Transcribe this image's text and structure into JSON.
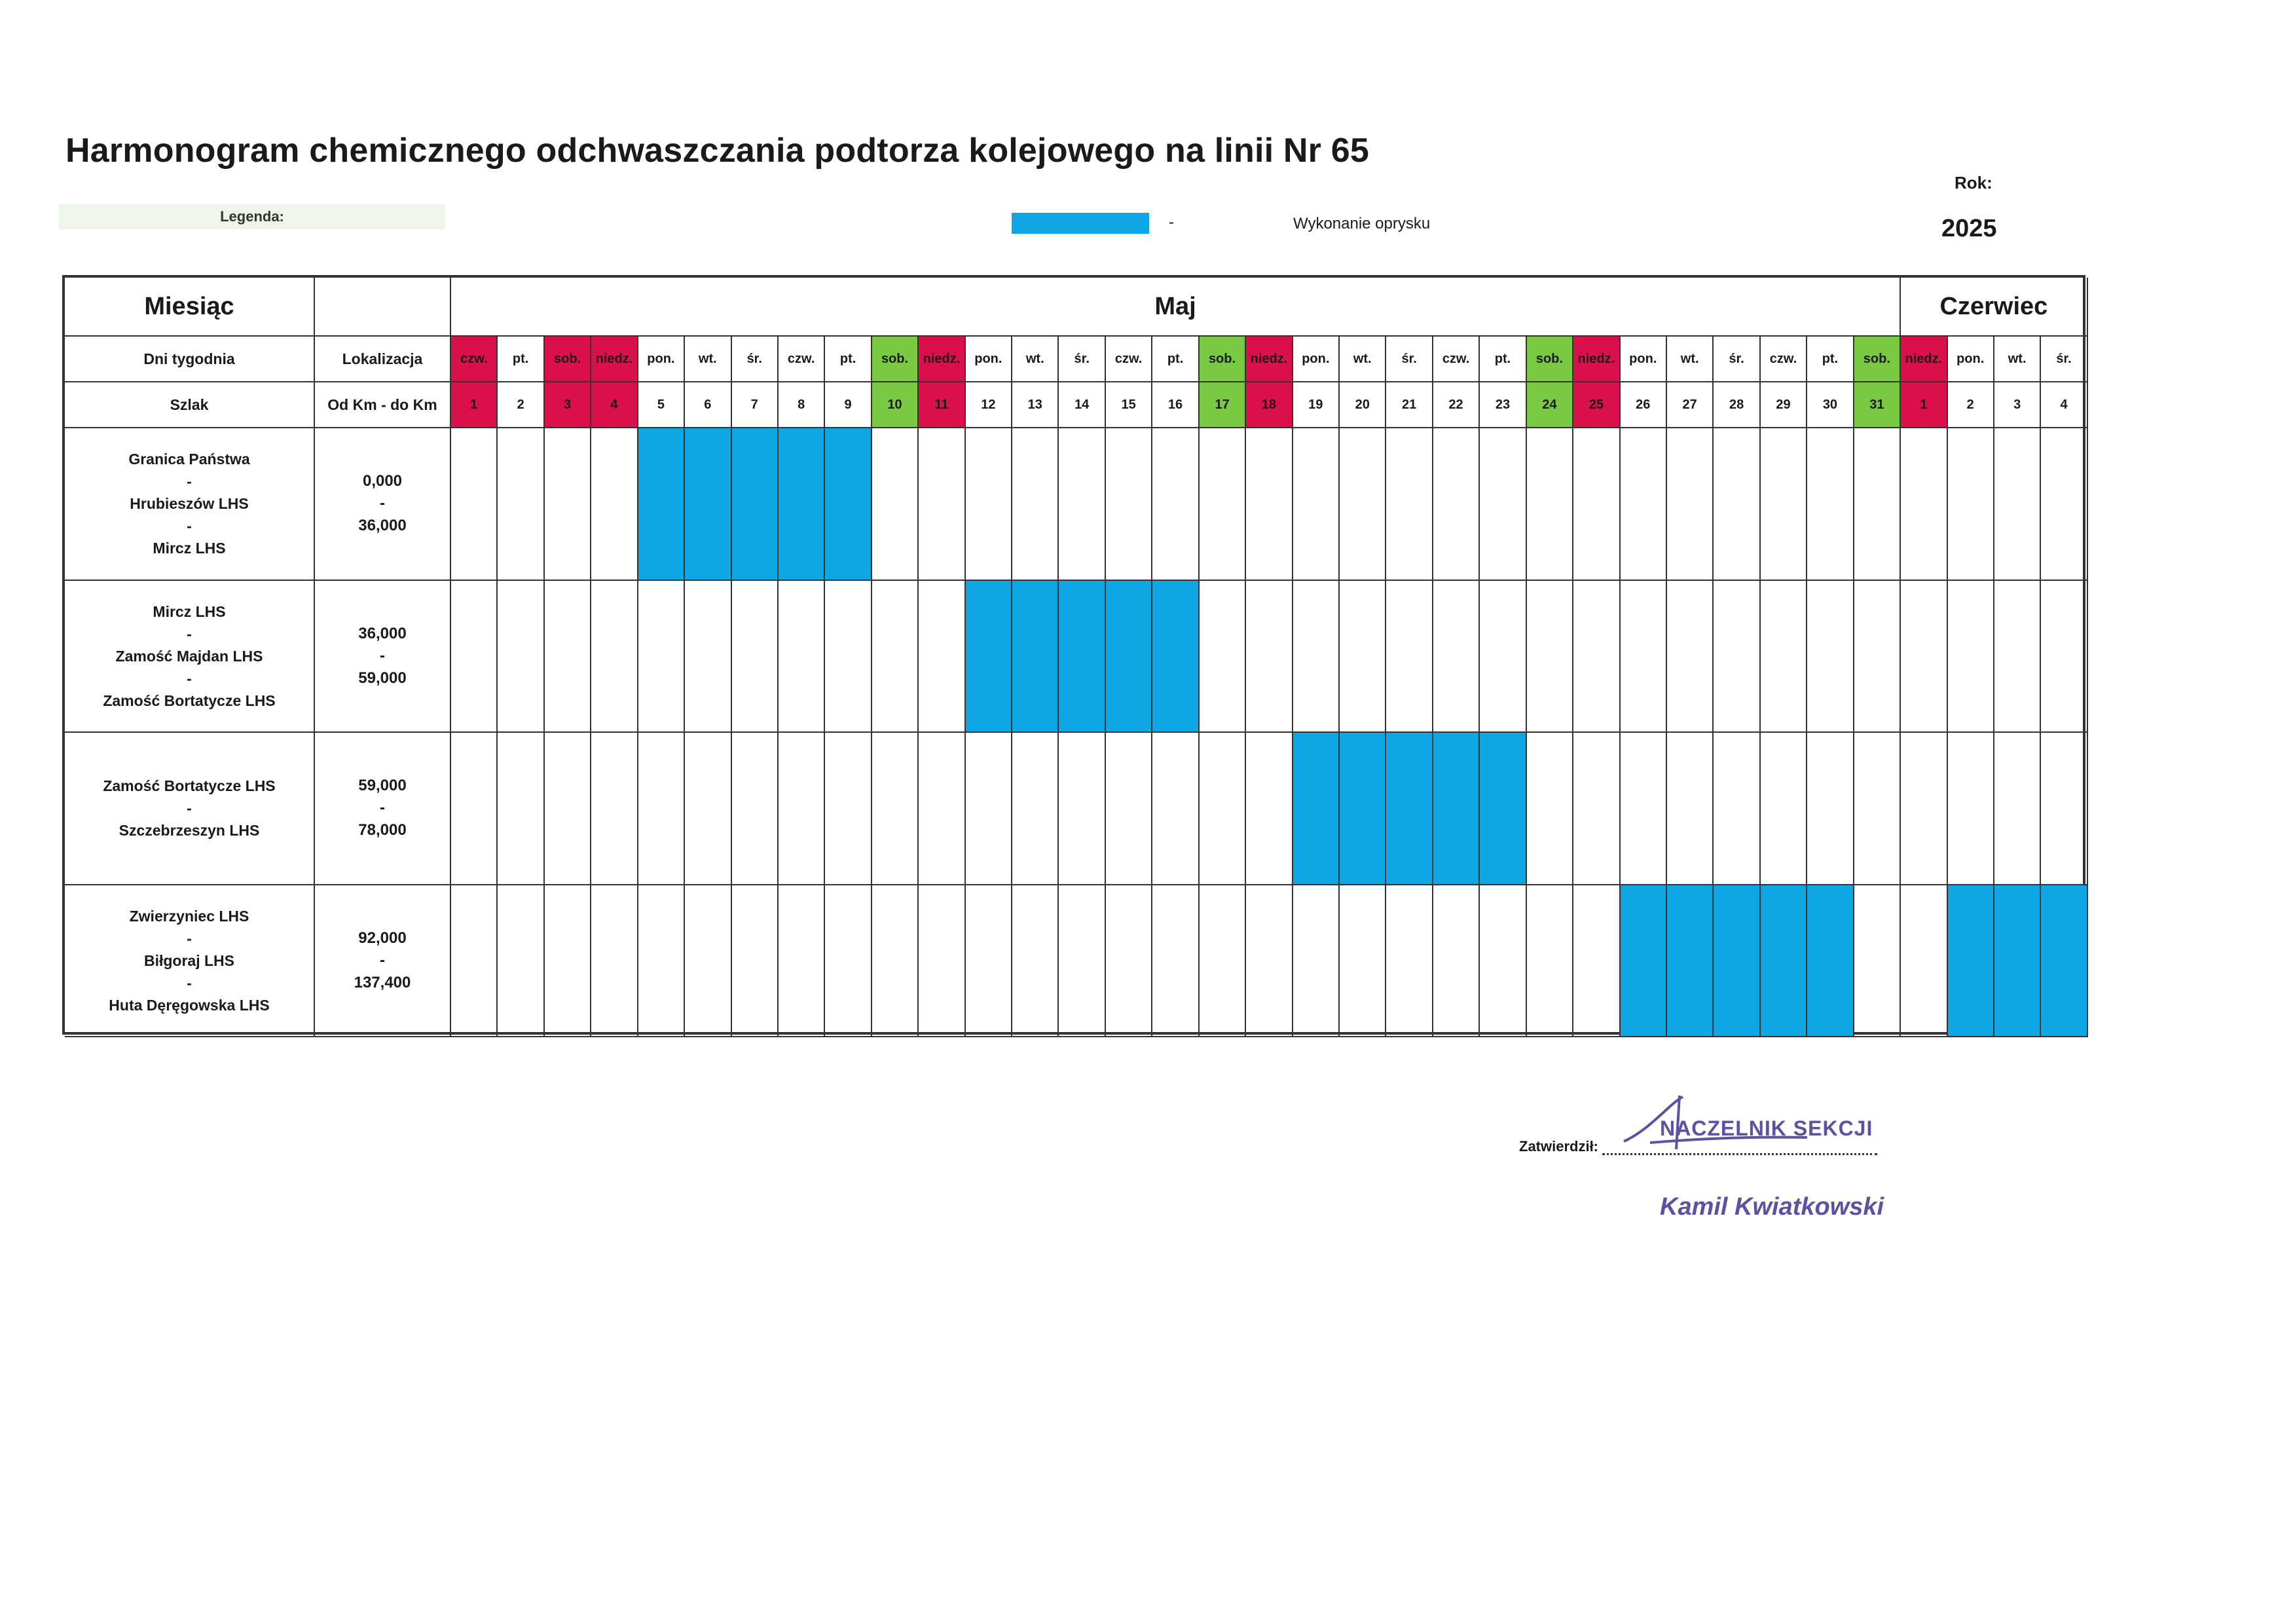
{
  "title": "Harmonogram chemicznego odchwaszczania podtorza kolejowego na linii Nr 65",
  "legend": {
    "label": "Legenda:",
    "dash": "-",
    "text": "Wykonanie oprysku",
    "color": "#0fa6e5"
  },
  "year": {
    "label": "Rok:",
    "value": "2025"
  },
  "headers": {
    "miesiac": "Miesiąc",
    "dni_tygodnia": "Dni tygodnia",
    "lokalizacja": "Lokalizacja",
    "szlak": "Szlak",
    "km": "Od Km - do Km"
  },
  "months": [
    {
      "name": "Maj",
      "span": 31
    },
    {
      "name": "Czerwiec",
      "span": 4
    }
  ],
  "days": [
    {
      "name": "czw.",
      "num": "1",
      "mark": "red"
    },
    {
      "name": "pt.",
      "num": "2",
      "mark": ""
    },
    {
      "name": "sob.",
      "num": "3",
      "mark": "red"
    },
    {
      "name": "niedz.",
      "num": "4",
      "mark": "red"
    },
    {
      "name": "pon.",
      "num": "5",
      "mark": ""
    },
    {
      "name": "wt.",
      "num": "6",
      "mark": ""
    },
    {
      "name": "śr.",
      "num": "7",
      "mark": ""
    },
    {
      "name": "czw.",
      "num": "8",
      "mark": ""
    },
    {
      "name": "pt.",
      "num": "9",
      "mark": ""
    },
    {
      "name": "sob.",
      "num": "10",
      "mark": "green"
    },
    {
      "name": "niedz.",
      "num": "11",
      "mark": "red"
    },
    {
      "name": "pon.",
      "num": "12",
      "mark": ""
    },
    {
      "name": "wt.",
      "num": "13",
      "mark": ""
    },
    {
      "name": "śr.",
      "num": "14",
      "mark": ""
    },
    {
      "name": "czw.",
      "num": "15",
      "mark": ""
    },
    {
      "name": "pt.",
      "num": "16",
      "mark": ""
    },
    {
      "name": "sob.",
      "num": "17",
      "mark": "green"
    },
    {
      "name": "niedz.",
      "num": "18",
      "mark": "red"
    },
    {
      "name": "pon.",
      "num": "19",
      "mark": ""
    },
    {
      "name": "wt.",
      "num": "20",
      "mark": ""
    },
    {
      "name": "śr.",
      "num": "21",
      "mark": ""
    },
    {
      "name": "czw.",
      "num": "22",
      "mark": ""
    },
    {
      "name": "pt.",
      "num": "23",
      "mark": ""
    },
    {
      "name": "sob.",
      "num": "24",
      "mark": "green"
    },
    {
      "name": "niedz.",
      "num": "25",
      "mark": "red"
    },
    {
      "name": "pon.",
      "num": "26",
      "mark": ""
    },
    {
      "name": "wt.",
      "num": "27",
      "mark": ""
    },
    {
      "name": "śr.",
      "num": "28",
      "mark": ""
    },
    {
      "name": "czw.",
      "num": "29",
      "mark": ""
    },
    {
      "name": "pt.",
      "num": "30",
      "mark": ""
    },
    {
      "name": "sob.",
      "num": "31",
      "mark": "green"
    },
    {
      "name": "niedz.",
      "num": "1",
      "mark": "red"
    },
    {
      "name": "pon.",
      "num": "2",
      "mark": ""
    },
    {
      "name": "wt.",
      "num": "3",
      "mark": ""
    },
    {
      "name": "śr.",
      "num": "4",
      "mark": ""
    }
  ],
  "sections": [
    {
      "route": [
        "Granica Państwa",
        "-",
        "Hrubieszów LHS",
        "-",
        "Mircz LHS"
      ],
      "km": [
        "0,000",
        "-",
        "36,000"
      ],
      "spray_day_indices": [
        4,
        5,
        6,
        7,
        8
      ]
    },
    {
      "route": [
        "Mircz LHS",
        "-",
        "Zamość Majdan LHS",
        "-",
        "Zamość Bortatycze LHS"
      ],
      "km": [
        "36,000",
        "-",
        "59,000"
      ],
      "spray_day_indices": [
        11,
        12,
        13,
        14,
        15
      ]
    },
    {
      "route": [
        "Zamość Bortatycze LHS",
        "-",
        "Szczebrzeszyn LHS"
      ],
      "km": [
        "59,000",
        "-",
        "78,000"
      ],
      "spray_day_indices": [
        18,
        19,
        20,
        21,
        22
      ]
    },
    {
      "route": [
        "Zwierzyniec LHS",
        "-",
        "Biłgoraj LHS",
        "-",
        "Huta Dęręgowska LHS"
      ],
      "km": [
        "92,000",
        "-",
        "137,400"
      ],
      "spray_day_indices": [
        25,
        26,
        27,
        28,
        29,
        32,
        33,
        34
      ]
    }
  ],
  "approval": {
    "label": "Zatwierdził:",
    "stamp_title": "NACZELNIK SEKCJI",
    "stamp_name": "Kamil Kwiatkowski"
  }
}
